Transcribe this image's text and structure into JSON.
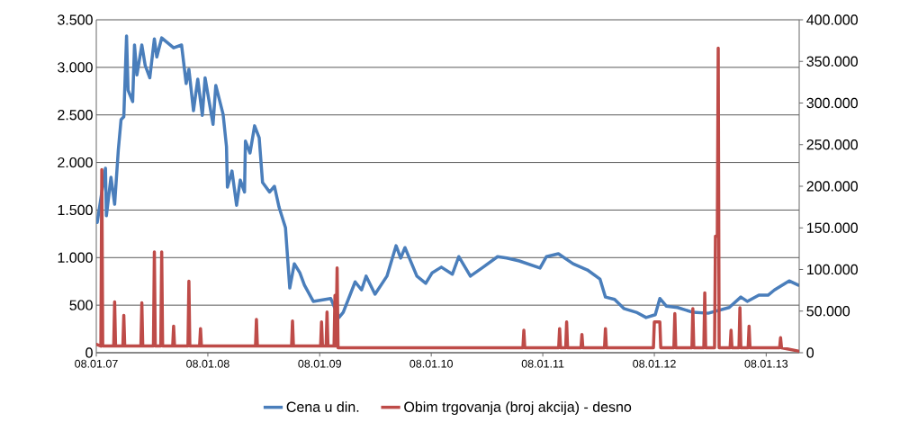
{
  "chart_data": {
    "type": "line",
    "xlim": [
      "2007-01-08",
      "2013-04-26"
    ],
    "xticks": [
      {
        "value": "2007-01-08",
        "label": "08.01.07"
      },
      {
        "value": "2008-01-08",
        "label": "08.01.08"
      },
      {
        "value": "2009-01-08",
        "label": "08.01.09"
      },
      {
        "value": "2010-01-08",
        "label": "08.01.10"
      },
      {
        "value": "2011-01-08",
        "label": "08.01.11"
      },
      {
        "value": "2012-01-08",
        "label": "08.01.12"
      },
      {
        "value": "2013-01-08",
        "label": "08.01.13"
      }
    ],
    "ylim": [
      0,
      3500
    ],
    "yticks": [
      0,
      500,
      {
        "value": 1000,
        "label": "1.000"
      },
      {
        "value": 1500,
        "label": "1.500"
      },
      {
        "value": 2000,
        "label": "2.000"
      },
      {
        "value": 2500,
        "label": "2.500"
      },
      {
        "value": 3000,
        "label": "3.000"
      },
      {
        "value": 3500,
        "label": "3.500"
      }
    ],
    "y2lim": [
      0,
      400000
    ],
    "y2ticks": [
      0,
      {
        "value": 50000,
        "label": "50.000"
      },
      {
        "value": 100000,
        "label": "100.000"
      },
      {
        "value": 150000,
        "label": "150.000"
      },
      {
        "value": 200000,
        "label": "200.000"
      },
      {
        "value": 250000,
        "label": "250.000"
      },
      {
        "value": 300000,
        "label": "300.000"
      },
      {
        "value": 350000,
        "label": "350.000"
      },
      {
        "value": 400000,
        "label": "400.000"
      }
    ],
    "grid": "y",
    "legend": "bottom",
    "marker": "none",
    "line_style": "solid",
    "series": [
      {
        "name": "Cena u din.",
        "color": "#4a7ebb",
        "x": [
          "2007-01-08",
          "2007-01-11",
          "2007-02-07",
          "2007-02-10",
          "2007-02-25",
          "2007-03-09",
          "2007-03-21",
          "2007-03-30",
          "2007-04-08",
          "2007-04-17",
          "2007-04-22",
          "2007-05-07",
          "2007-05-13",
          "2007-05-21",
          "2007-06-06",
          "2007-06-17",
          "2007-07-02",
          "2007-07-17",
          "2007-07-25",
          "2007-08-10",
          "2007-09-18",
          "2007-10-14",
          "2007-10-29",
          "2007-11-07",
          "2007-11-22",
          "2007-12-06",
          "2007-12-21",
          "2007-12-30",
          "2008-01-25",
          "2008-02-03",
          "2008-02-27",
          "2008-03-09",
          "2008-03-12",
          "2008-03-27",
          "2008-04-11",
          "2008-04-23",
          "2008-05-07",
          "2008-05-10",
          "2008-05-25",
          "2008-06-09",
          "2008-06-24",
          "2008-07-05",
          "2008-07-28",
          "2008-08-13",
          "2008-08-28",
          "2008-09-18",
          "2008-10-02",
          "2008-10-17",
          "2008-11-04",
          "2008-11-19",
          "2008-12-18",
          "2009-02-13",
          "2009-03-12",
          "2009-03-26",
          "2009-05-04",
          "2009-05-25",
          "2009-06-09",
          "2009-07-08",
          "2009-08-16",
          "2009-09-15",
          "2009-09-30",
          "2009-10-14",
          "2009-11-22",
          "2009-12-21",
          "2010-01-11",
          "2010-02-10",
          "2010-03-18",
          "2010-04-08",
          "2010-05-16",
          "2010-06-27",
          "2010-08-13",
          "2010-09-12",
          "2010-10-23",
          "2010-12-30",
          "2011-01-20",
          "2011-02-28",
          "2011-04-17",
          "2011-06-03",
          "2011-07-14",
          "2011-08-01",
          "2011-08-31",
          "2011-09-30",
          "2011-11-10",
          "2011-12-12",
          "2012-01-11",
          "2012-01-26",
          "2012-02-16",
          "2012-03-24",
          "2012-05-13",
          "2012-07-02",
          "2012-09-09",
          "2012-10-17",
          "2012-11-07",
          "2012-12-15",
          "2013-01-14",
          "2013-02-04",
          "2013-03-24",
          "2013-04-23"
        ],
        "values": [
          1390,
          1370,
          1940,
          1440,
          1845,
          1560,
          2130,
          2450,
          2480,
          3330,
          2760,
          2640,
          3235,
          2920,
          3235,
          3020,
          2890,
          3300,
          3110,
          3310,
          3205,
          3235,
          2830,
          2980,
          2545,
          2875,
          2495,
          2890,
          2400,
          2810,
          2505,
          2165,
          1740,
          1910,
          1550,
          1815,
          1690,
          2225,
          2100,
          2385,
          2260,
          1790,
          1690,
          1750,
          1530,
          1315,
          680,
          935,
          840,
          710,
          540,
          570,
          370,
          425,
          745,
          660,
          805,
          615,
          805,
          1125,
          995,
          1105,
          805,
          730,
          840,
          900,
          825,
          1010,
          805,
          900,
          1010,
          995,
          965,
          890,
          1010,
          1040,
          935,
          870,
          775,
          585,
          560,
          465,
          425,
          370,
          400,
          570,
          490,
          475,
          425,
          415,
          475,
          585,
          540,
          605,
          605,
          660,
          755,
          710
        ]
      },
      {
        "name": "Obim trgovanja (broj akcija) - desno",
        "color": "#be4b48",
        "axis": "y2",
        "x": [
          "2007-01-08",
          "2007-01-23",
          "2007-01-26",
          "2007-01-29",
          "2007-03-06",
          "2007-03-09",
          "2007-03-12",
          "2007-04-05",
          "2007-04-08",
          "2007-04-11",
          "2007-06-03",
          "2007-06-06",
          "2007-06-09",
          "2007-07-14",
          "2007-07-17",
          "2007-07-20",
          "2007-08-07",
          "2007-08-10",
          "2007-08-13",
          "2007-09-15",
          "2007-09-18",
          "2007-09-21",
          "2007-11-04",
          "2007-11-07",
          "2007-11-10",
          "2007-12-12",
          "2007-12-15",
          "2007-12-18",
          "2008-06-12",
          "2008-06-15",
          "2008-06-18",
          "2008-10-08",
          "2008-10-11",
          "2008-10-14",
          "2009-01-11",
          "2009-01-14",
          "2009-01-17",
          "2009-01-29",
          "2009-02-01",
          "2009-02-04",
          "2009-02-24",
          "2009-02-27",
          "2009-03-02",
          "2009-03-06",
          "2009-03-09",
          "2010-11-04",
          "2010-11-07",
          "2010-11-10",
          "2011-03-01",
          "2011-03-04",
          "2011-03-07",
          "2011-03-24",
          "2011-03-27",
          "2011-03-30",
          "2011-05-13",
          "2011-05-16",
          "2011-05-19",
          "2011-07-29",
          "2011-08-01",
          "2011-08-04",
          "2012-01-05",
          "2012-01-08",
          "2012-01-26",
          "2012-01-29",
          "2012-03-12",
          "2012-03-15",
          "2012-03-18",
          "2012-05-10",
          "2012-05-13",
          "2012-05-16",
          "2012-06-18",
          "2012-06-21",
          "2012-06-24",
          "2012-07-23",
          "2012-07-26",
          "2012-08-01",
          "2012-08-04",
          "2012-08-07",
          "2012-09-12",
          "2012-09-15",
          "2012-09-18",
          "2012-10-11",
          "2012-10-14",
          "2012-10-17",
          "2012-11-10",
          "2012-11-13",
          "2012-11-16",
          "2013-02-21",
          "2013-02-24",
          "2013-02-27",
          "2013-04-23"
        ],
        "values": [
          10000,
          8000,
          220000,
          8000,
          8000,
          61000,
          8000,
          8000,
          45000,
          8000,
          8000,
          60000,
          8000,
          8000,
          121000,
          8000,
          8000,
          121000,
          8000,
          8000,
          32000,
          8000,
          8000,
          86000,
          8000,
          8000,
          29000,
          8000,
          8000,
          40000,
          8000,
          8000,
          38000,
          8000,
          8000,
          37000,
          8000,
          8000,
          49000,
          8000,
          8000,
          69000,
          8000,
          102000,
          6000,
          6000,
          27000,
          6000,
          6000,
          29000,
          6000,
          6000,
          37000,
          6000,
          6000,
          22000,
          6000,
          6000,
          29000,
          6000,
          6000,
          37000,
          37000,
          6000,
          6000,
          47000,
          6000,
          6000,
          53000,
          6000,
          6000,
          72000,
          6000,
          6000,
          140000,
          140000,
          366000,
          6000,
          6000,
          27000,
          6000,
          6000,
          54000,
          6000,
          6000,
          32000,
          6000,
          6000,
          18000,
          6000,
          2000
        ]
      }
    ]
  }
}
